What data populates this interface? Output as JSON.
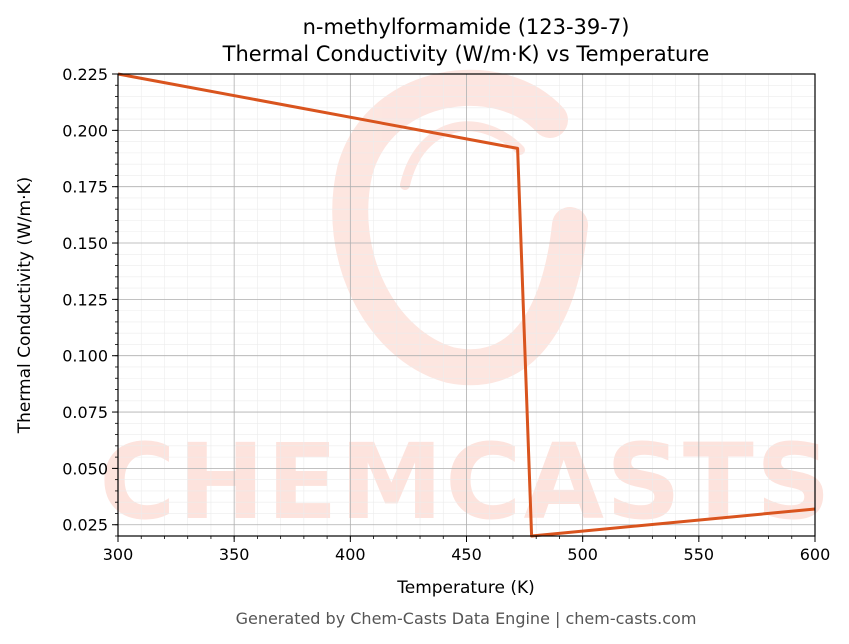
{
  "chart_data": {
    "type": "line",
    "title": "n-methylformamide (123-39-7)",
    "subtitle": "Thermal Conductivity (W/m·K) vs Temperature",
    "xlabel": "Temperature (K)",
    "ylabel": "Thermal Conductivity (W/m·K)",
    "xlim": [
      300,
      600
    ],
    "ylim": [
      0.02,
      0.225
    ],
    "x_ticks": [
      "300",
      "350",
      "400",
      "450",
      "500",
      "550",
      "600"
    ],
    "y_ticks": [
      "0.025",
      "0.050",
      "0.075",
      "0.100",
      "0.125",
      "0.150",
      "0.175",
      "0.200",
      "0.225"
    ],
    "grid": true,
    "series": [
      {
        "color": "#d9541e",
        "x": [
          300,
          472,
          478,
          600
        ],
        "y": [
          0.225,
          0.192,
          0.02,
          0.032
        ]
      }
    ]
  },
  "watermark": {
    "text": "CHEMCASTS",
    "color": "#fde3dd"
  },
  "footer": "Generated by Chem-Casts Data Engine | chem-casts.com"
}
